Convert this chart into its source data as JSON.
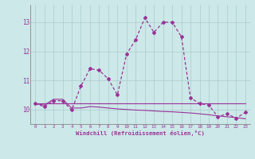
{
  "xlabel": "Windchill (Refroidissement éolien,°C)",
  "bg_color": "#cce8e8",
  "line_color": "#993399",
  "hours": [
    0,
    1,
    2,
    3,
    4,
    5,
    6,
    7,
    8,
    9,
    10,
    11,
    12,
    13,
    14,
    15,
    16,
    17,
    18,
    19,
    20,
    21,
    22,
    23
  ],
  "temp_main": [
    10.2,
    10.1,
    10.3,
    10.3,
    9.98,
    10.8,
    11.4,
    11.35,
    11.05,
    10.5,
    11.9,
    12.4,
    13.15,
    12.65,
    13.0,
    13.0,
    12.5,
    10.4,
    10.2,
    10.15,
    9.75,
    9.85,
    9.7,
    9.9
  ],
  "temp_flat": [
    10.2,
    10.2,
    10.2,
    10.2,
    10.2,
    10.2,
    10.2,
    10.2,
    10.2,
    10.2,
    10.2,
    10.2,
    10.2,
    10.2,
    10.2,
    10.2,
    10.2,
    10.2,
    10.2,
    10.2,
    10.2,
    10.2,
    10.2,
    10.2
  ],
  "temp_decline": [
    10.2,
    10.15,
    10.35,
    10.35,
    10.05,
    10.05,
    10.1,
    10.08,
    10.05,
    10.02,
    10.0,
    9.98,
    9.97,
    9.95,
    9.93,
    9.92,
    9.9,
    9.88,
    9.85,
    9.82,
    9.78,
    9.75,
    9.72,
    9.68
  ],
  "ylim_min": 9.5,
  "ylim_max": 13.6,
  "yticks": [
    10,
    11,
    12,
    13
  ],
  "xticks": [
    0,
    1,
    2,
    3,
    4,
    5,
    6,
    7,
    8,
    9,
    10,
    11,
    12,
    13,
    14,
    15,
    16,
    17,
    18,
    19,
    20,
    21,
    22,
    23
  ]
}
